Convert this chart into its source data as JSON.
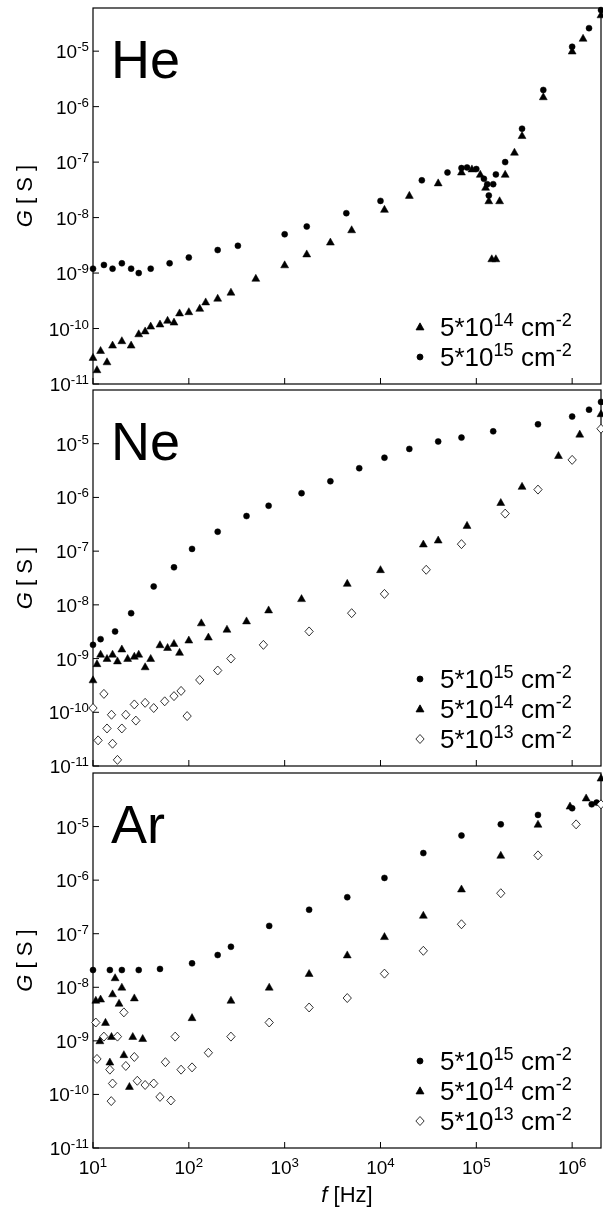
{
  "chart_data": [
    {
      "type": "scatter",
      "annotations": [
        "He"
      ],
      "ylabel": "G [ S ]",
      "log": "xy",
      "legend": "bottom right",
      "tick_labels": "y",
      "xlim": [
        10,
        2000000
      ],
      "ylim": [
        1e-11,
        6e-05
      ],
      "xticks": [
        {
          "value": 10,
          "label": null
        },
        {
          "value": 100,
          "label": null
        },
        {
          "value": 1000,
          "label": null
        },
        {
          "value": 10000,
          "label": null
        },
        {
          "value": 100000,
          "label": null
        },
        {
          "value": 1000000,
          "label": null
        }
      ],
      "yticks": [
        {
          "value": 1e-11,
          "label": "10$^{-11}$"
        },
        {
          "value": 1e-10,
          "label": "10$^{-10}$"
        },
        {
          "value": 1e-09,
          "label": "10$^{-9}$"
        },
        {
          "value": 1e-08,
          "label": "10$^{-8}$"
        },
        {
          "value": 1e-07,
          "label": "10$^{-7}$"
        },
        {
          "value": 1e-06,
          "label": "10$^{-6}$"
        },
        {
          "value": 1e-05,
          "label": "10$^{-5}$"
        }
      ],
      "series": [
        {
          "name": "5*10$^{14}$ cm$^{-2}$",
          "color": "#000000",
          "marker": "triangle",
          "x": [
            10,
            11,
            12,
            14,
            16,
            20,
            25,
            30,
            35,
            40,
            50,
            60,
            70,
            80,
            100,
            130,
            150,
            200,
            275,
            500,
            1000,
            1700,
            3000,
            5000,
            11000,
            20000,
            40000,
            70000,
            90000,
            110000,
            125000,
            135000,
            145000,
            160000,
            175000,
            200000,
            250000,
            300000,
            500000,
            1000000,
            1300000,
            2000000
          ],
          "values": [
            3e-11,
            1.8e-11,
            4e-11,
            2.5e-11,
            5e-11,
            6e-11,
            5e-11,
            8e-11,
            9e-11,
            1.1e-10,
            1.2e-10,
            1.4e-10,
            1.3e-10,
            1.9e-10,
            2e-10,
            2.3e-10,
            3e-10,
            3.5e-10,
            4.5e-10,
            8e-10,
            1.4e-09,
            2.2e-09,
            3.6e-09,
            6e-09,
            1.4e-08,
            2.5e-08,
            4.2e-08,
            6.6e-08,
            7.5e-08,
            6e-08,
            3.5e-08,
            2e-08,
            1.8e-09,
            1.8e-09,
            2e-08,
            6e-08,
            1.5e-07,
            3e-07,
            1.5e-06,
            1e-05,
            1.7e-05,
            4.5e-05
          ]
        },
        {
          "name": "5*10$^{15}$ cm$^{-2}$",
          "color": "#000000",
          "marker": "circle",
          "x": [
            10,
            13,
            16,
            20,
            25,
            30,
            40,
            63,
            100,
            200,
            325,
            1000,
            1700,
            4400,
            10000,
            27000,
            50000,
            70000,
            80000,
            100000,
            120000,
            130000,
            135000,
            150000,
            160000,
            200000,
            300000,
            500000,
            1000000,
            1500000,
            2000000
          ],
          "values": [
            1.2e-09,
            1.4e-09,
            1.2e-09,
            1.5e-09,
            1.2e-09,
            1e-09,
            1.2e-09,
            1.5e-09,
            1.9e-09,
            2.6e-09,
            3.1e-09,
            5e-09,
            6.9e-09,
            1.2e-08,
            2e-08,
            4.7e-08,
            6.5e-08,
            7.8e-08,
            8e-08,
            7.5e-08,
            5e-08,
            4e-08,
            2.5e-08,
            4e-08,
            6e-08,
            1e-07,
            4e-07,
            2e-06,
            1.2e-05,
            2.6e-05,
            5.5e-05
          ]
        }
      ]
    },
    {
      "type": "scatter",
      "annotations": [
        "Ne"
      ],
      "ylabel": "G [ S ]",
      "log": "xy",
      "legend": "bottom right",
      "tick_labels": "y",
      "xlim": [
        10,
        2000000
      ],
      "ylim": [
        1e-11,
        0.0001
      ],
      "xticks": [
        {
          "value": 10,
          "label": null
        },
        {
          "value": 100,
          "label": null
        },
        {
          "value": 1000,
          "label": null
        },
        {
          "value": 10000,
          "label": null
        },
        {
          "value": 100000,
          "label": null
        },
        {
          "value": 1000000,
          "label": null
        }
      ],
      "yticks": [
        {
          "value": 1e-11,
          "label": "10$^{-11}$"
        },
        {
          "value": 1e-10,
          "label": "10$^{-10}$"
        },
        {
          "value": 1e-09,
          "label": "10$^{-9}$"
        },
        {
          "value": 1e-08,
          "label": "10$^{-8}$"
        },
        {
          "value": 1e-07,
          "label": "10$^{-7}$"
        },
        {
          "value": 1e-06,
          "label": "10$^{-6}$"
        },
        {
          "value": 1e-05,
          "label": "10$^{-5}$"
        }
      ],
      "series": [
        {
          "name": "5*10$^{15}$ cm$^{-2}$",
          "color": "#000000",
          "marker": "circle",
          "x": [
            10,
            12,
            17,
            25,
            43,
            70,
            108,
            200,
            400,
            680,
            1500,
            3000,
            6000,
            11000,
            20000,
            40000,
            70000,
            150000,
            440000,
            1000000,
            1500000,
            2000000
          ],
          "values": [
            1.8e-09,
            2.3e-09,
            3.2e-09,
            7e-09,
            2.2e-08,
            5e-08,
            1.1e-07,
            2.3e-07,
            4.5e-07,
            7e-07,
            1.2e-06,
            2e-06,
            3.5e-06,
            5.5e-06,
            8e-06,
            1.1e-05,
            1.3e-05,
            1.7e-05,
            2.3e-05,
            3.2e-05,
            4.3e-05,
            6e-05
          ]
        },
        {
          "name": "5*10$^{14}$ cm$^{-2}$",
          "color": "#000000",
          "marker": "triangle",
          "x": [
            10,
            11,
            12,
            14,
            16,
            18,
            20,
            23,
            27,
            30,
            35,
            40,
            50,
            60,
            70,
            80,
            100,
            135,
            160,
            250,
            400,
            680,
            1500,
            4500,
            10000,
            28000,
            40000,
            80000,
            180000,
            300000,
            720000,
            1200000,
            2000000
          ],
          "values": [
            4e-10,
            8e-10,
            1.2e-09,
            1e-09,
            1.2e-09,
            9e-10,
            1.5e-09,
            1e-09,
            1.1e-09,
            1.2e-09,
            7e-10,
            1e-09,
            1.8e-09,
            1.6e-09,
            1.9e-09,
            1.3e-09,
            2.2e-09,
            4.6e-09,
            2.5e-09,
            3.5e-09,
            5e-09,
            8e-09,
            1.3e-08,
            2.5e-08,
            4.5e-08,
            1.35e-07,
            1.6e-07,
            3e-07,
            8e-07,
            1.6e-06,
            6e-06,
            1.5e-05,
            3.6e-05
          ]
        },
        {
          "name": "5*10$^{13}$ cm$^{-2}$",
          "color": "#000000",
          "marker": "diamond",
          "x": [
            10,
            11.3,
            13,
            14,
            15.6,
            16,
            18,
            20,
            22,
            27,
            28,
            35,
            43,
            56,
            70,
            83,
            96,
            130,
            200,
            275,
            600,
            1800,
            5000,
            11000,
            30000,
            70000,
            200000,
            440000,
            1000000,
            2000000
          ],
          "values": [
            1.2e-10,
            3e-11,
            2.2e-10,
            5e-11,
            9e-11,
            2.6e-11,
            1.3e-11,
            5e-11,
            9e-11,
            1.4e-10,
            7e-11,
            1.5e-10,
            1.2e-10,
            1.6e-10,
            2e-10,
            2.5e-10,
            8.5e-11,
            4e-10,
            6e-10,
            1e-09,
            1.8e-09,
            3.2e-09,
            7e-09,
            1.6e-08,
            4.5e-08,
            1.35e-07,
            5e-07,
            1.4e-06,
            5e-06,
            1.9e-05
          ]
        }
      ]
    },
    {
      "type": "scatter",
      "annotations": [
        "Ar"
      ],
      "xlabel": "f [Hz]",
      "ylabel": "G [ S ]",
      "log": "xy",
      "legend": "bottom right",
      "xlim": [
        10,
        2000000
      ],
      "ylim": [
        1e-11,
        0.0001
      ],
      "xticks": [
        {
          "value": 10,
          "label": "10$^{1}$"
        },
        {
          "value": 100,
          "label": "10$^{2}$"
        },
        {
          "value": 1000,
          "label": "10$^{3}$"
        },
        {
          "value": 10000,
          "label": "10$^{4}$"
        },
        {
          "value": 100000,
          "label": "10$^{5}$"
        },
        {
          "value": 1000000,
          "label": "10$^{6}$"
        }
      ],
      "yticks": [
        {
          "value": 1e-11,
          "label": "10$^{-11}$"
        },
        {
          "value": 1e-10,
          "label": "10$^{-10}$"
        },
        {
          "value": 1e-09,
          "label": "10$^{-9}$"
        },
        {
          "value": 1e-08,
          "label": "10$^{-8}$"
        },
        {
          "value": 1e-07,
          "label": "10$^{-7}$"
        },
        {
          "value": 1e-06,
          "label": "10$^{-6}$"
        },
        {
          "value": 1e-05,
          "label": "10$^{-5}$"
        }
      ],
      "series": [
        {
          "name": "5*10$^{15}$ cm$^{-2}$",
          "color": "#000000",
          "marker": "circle",
          "x": [
            10,
            15,
            20,
            30,
            50,
            108,
            200,
            275,
            690,
            1800,
            4500,
            11000,
            28000,
            70000,
            180000,
            440000,
            1000000,
            1600000,
            1800000
          ],
          "values": [
            2.1e-08,
            2.1e-08,
            2.1e-08,
            2.1e-08,
            2.2e-08,
            2.8e-08,
            4e-08,
            5.7e-08,
            1.4e-07,
            2.8e-07,
            4.8e-07,
            1.1e-06,
            3.2e-06,
            6.8e-06,
            1.1e-05,
            1.65e-05,
            2.2e-05,
            2.6e-05,
            2.8e-05
          ]
        },
        {
          "name": "5*10$^{14}$ cm$^{-2}$",
          "color": "#000000",
          "marker": "triangle",
          "x": [
            10.7,
            11.8,
            12,
            13.5,
            15,
            15.6,
            16,
            17,
            18.7,
            20,
            21,
            24,
            26,
            27,
            33,
            108,
            275,
            690,
            1800,
            4500,
            11000,
            28000,
            70000,
            180000,
            440000,
            950000,
            1400000,
            2000000
          ],
          "values": [
            5.7e-09,
            1e-09,
            6e-09,
            2.2e-09,
            4e-10,
            1.2e-09,
            7.5e-09,
            1.5e-08,
            5e-09,
            1e-08,
            5.5e-10,
            1.4e-10,
            1.2e-09,
            6.3e-09,
            1.1e-09,
            2.7e-09,
            5.7e-09,
            1e-08,
            1.8e-08,
            4e-08,
            8.8e-08,
            2.2e-07,
            6.8e-07,
            2.9e-06,
            1.1e-05,
            2.4e-05,
            3.4e-05,
            8e-05
          ]
        },
        {
          "name": "5*10$^{13}$ cm$^{-2}$",
          "color": "#000000",
          "marker": "diamond",
          "x": [
            10.7,
            11,
            13,
            15,
            15.5,
            16,
            18,
            21,
            22,
            27,
            29,
            35,
            43,
            50,
            57,
            65,
            72,
            83,
            108,
            160,
            275,
            690,
            1800,
            4500,
            11000,
            28000,
            70000,
            180000,
            440000,
            1100000,
            2000000
          ],
          "values": [
            2.2e-09,
            4.6e-10,
            1.2e-09,
            2.9e-10,
            7.5e-11,
            1.6e-10,
            1.2e-09,
            3.4e-09,
            3.4e-10,
            5e-10,
            1.8e-10,
            1.5e-10,
            1.6e-10,
            9e-11,
            4e-10,
            7.7e-11,
            1.2e-09,
            2.9e-10,
            3.2e-10,
            6e-10,
            1.2e-09,
            2.2e-09,
            4.2e-09,
            6.3e-09,
            1.8e-08,
            4.8e-08,
            1.5e-07,
            5.7e-07,
            2.9e-06,
            1.1e-05,
            2.6e-05
          ]
        }
      ]
    }
  ]
}
